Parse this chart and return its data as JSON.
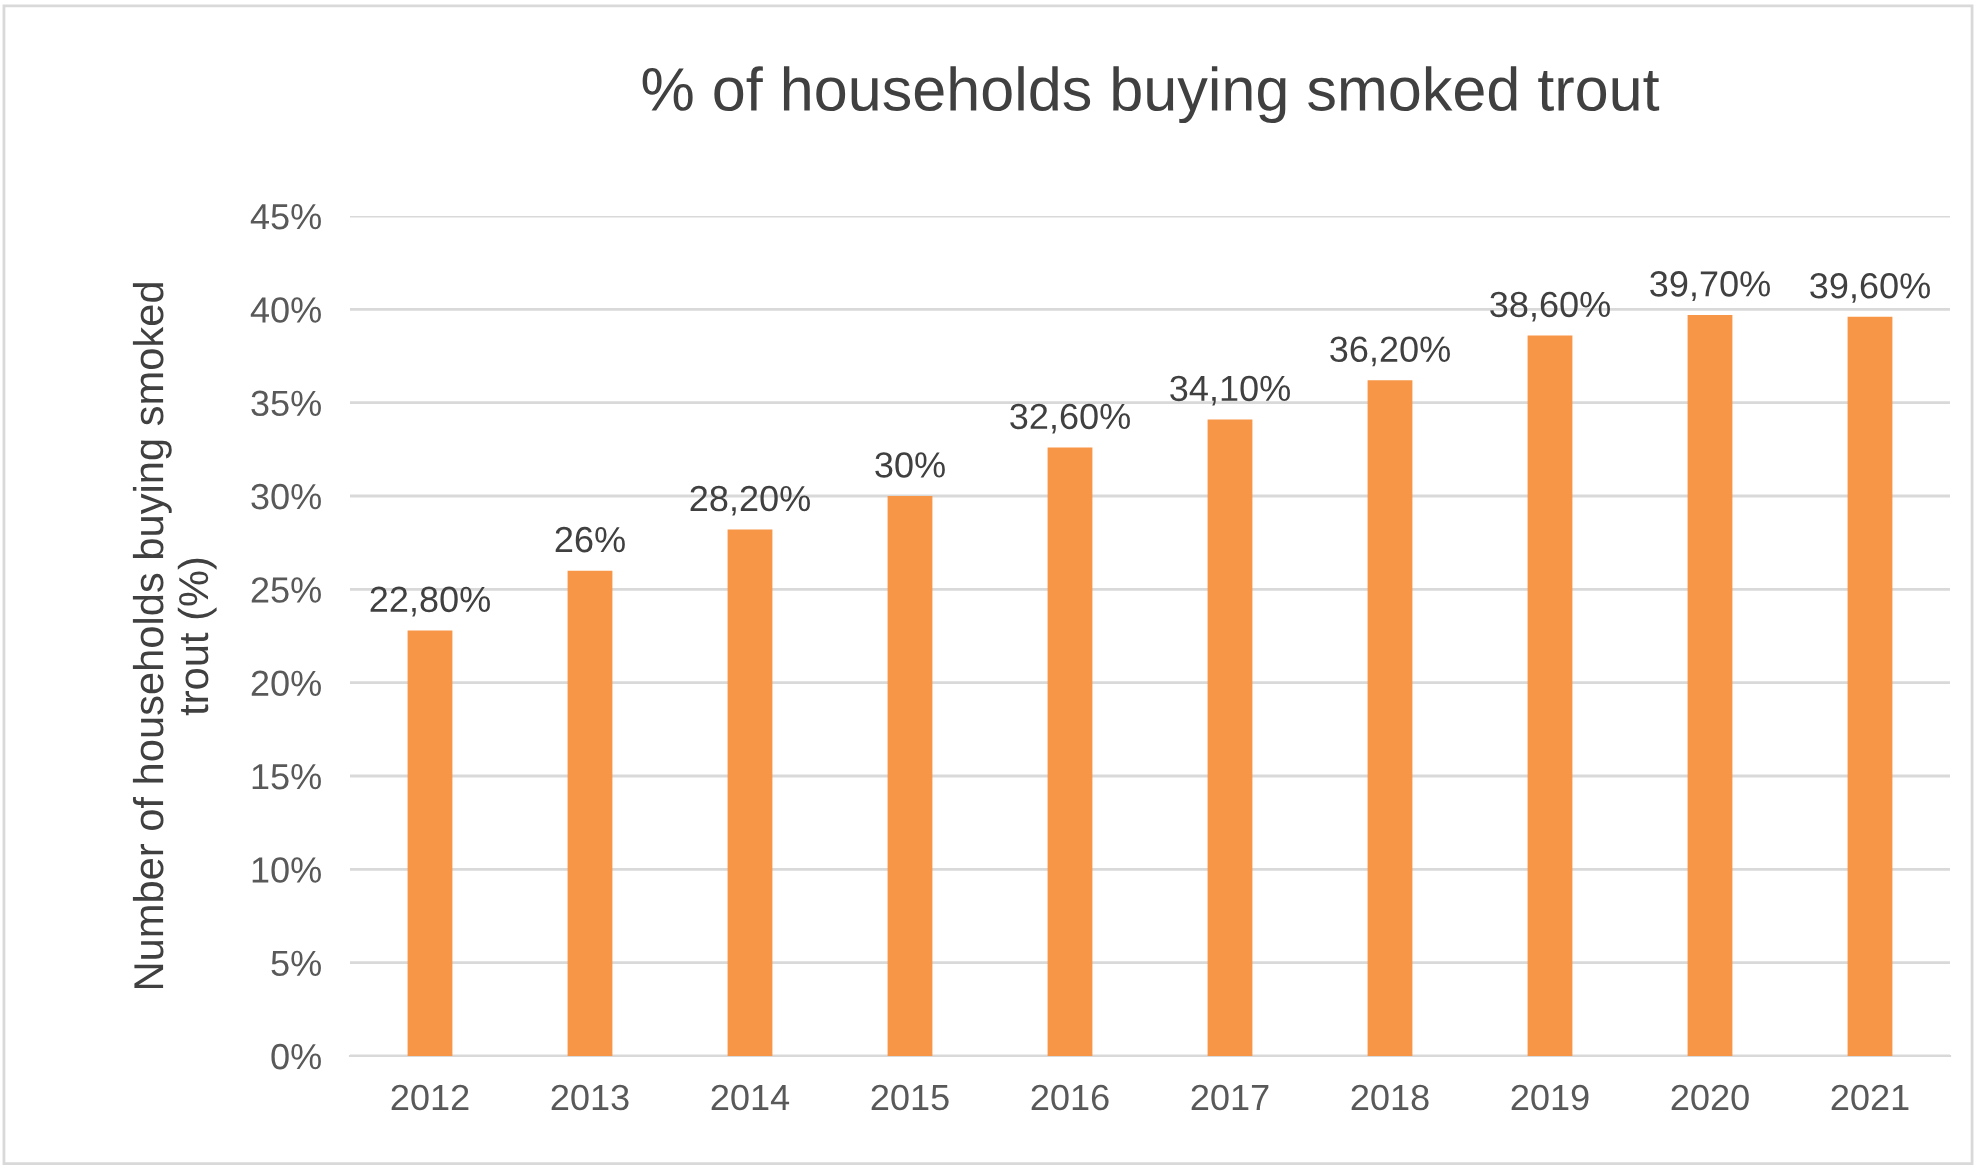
{
  "chart_data": {
    "type": "bar",
    "title": "% of households buying smoked trout",
    "ylabel": "Number of households buying smoked\ntrout (%)",
    "categories": [
      "2012",
      "2013",
      "2014",
      "2015",
      "2016",
      "2017",
      "2018",
      "2019",
      "2020",
      "2021"
    ],
    "values": [
      22.8,
      26,
      28.2,
      30,
      32.6,
      34.1,
      36.2,
      38.6,
      39.7,
      39.6
    ],
    "value_labels": [
      "22,80%",
      "26%",
      "28,20%",
      "30%",
      "32,60%",
      "34,10%",
      "36,20%",
      "38,60%",
      "39,70%",
      "39,60%"
    ],
    "color": "#f79646",
    "ylim": [
      0,
      45
    ],
    "yticks": [
      {
        "value": 0,
        "label": "0%"
      },
      {
        "value": 5,
        "label": "5%"
      },
      {
        "value": 10,
        "label": "10%"
      },
      {
        "value": 15,
        "label": "15%"
      },
      {
        "value": 20,
        "label": "20%"
      },
      {
        "value": 25,
        "label": "25%"
      },
      {
        "value": 30,
        "label": "30%"
      },
      {
        "value": 35,
        "label": "35%"
      },
      {
        "value": 40,
        "label": "40%"
      },
      {
        "value": 45,
        "label": "45%"
      }
    ],
    "grid": "y",
    "legend": false
  }
}
